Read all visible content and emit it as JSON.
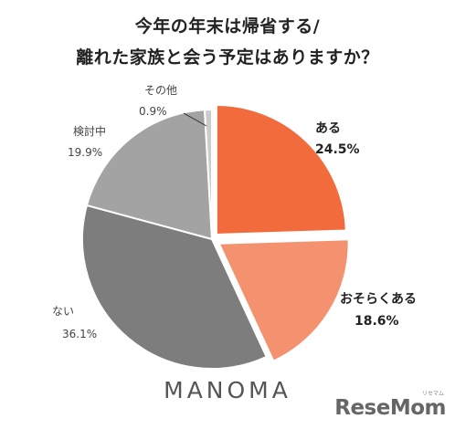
{
  "title_lines": [
    "今年の年末は帰省する/",
    "離れた家族と会う予定はありますか？"
  ],
  "brand": "MANOMA",
  "watermark": {
    "text": "ReseMom",
    "sub": "リセマム"
  },
  "colors": {
    "aru": "#f26b3c",
    "osoraku": "#f49270",
    "nai": "#7d7d7d",
    "kentouchu": "#a3a3a3",
    "sonota": "#cccccc"
  },
  "chart_data": {
    "type": "pie",
    "title": "今年の年末は帰省する/離れた家族と会う予定はありますか？",
    "start": "12 o'clock",
    "direction": "clockwise",
    "exploded": [
      "ある",
      "おそらくある"
    ],
    "slices": [
      {
        "label": "ある",
        "value": 24.5,
        "value_label": "24.5%",
        "color": "#f26b3c"
      },
      {
        "label": "おそらくある",
        "value": 18.6,
        "value_label": "18.6%",
        "color": "#f49270"
      },
      {
        "label": "ない",
        "value": 36.1,
        "value_label": "36.1%",
        "color": "#7d7d7d"
      },
      {
        "label": "検討中",
        "value": 19.9,
        "value_label": "19.9%",
        "color": "#a3a3a3"
      },
      {
        "label": "その他",
        "value": 0.9,
        "value_label": "0.9%",
        "color": "#cccccc"
      }
    ]
  }
}
